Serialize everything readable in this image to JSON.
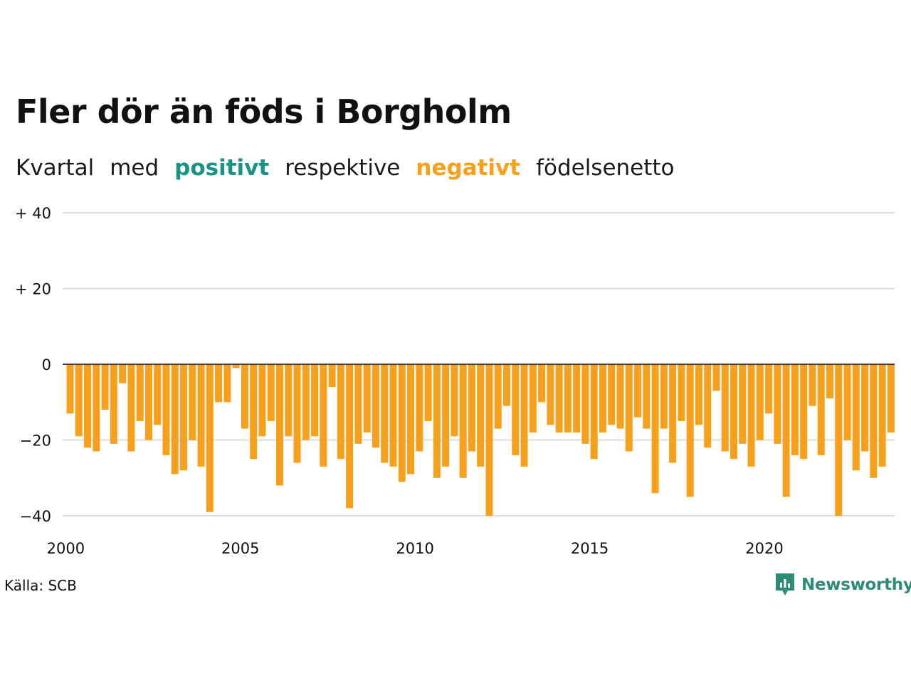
{
  "title": "Fler dör än föds i Borgholm",
  "subtitle": {
    "part1": "Kvartal",
    "part2": "med",
    "positive": "positivt",
    "part3": "respektive",
    "negative": "negativt",
    "part4": "födelsenetto"
  },
  "source": "Källa: SCB",
  "logo_text": "Newsworthy",
  "colors": {
    "positive": "#1a9384",
    "negative": "#f7a01c",
    "grid": "#dddddd",
    "logo": "#2e8b78"
  },
  "chart_data": {
    "type": "bar",
    "ylim": [
      -40,
      40
    ],
    "yticks": [
      {
        "value": 40,
        "label": "+ 40"
      },
      {
        "value": 20,
        "label": "+ 20"
      },
      {
        "value": 0,
        "label": "0"
      },
      {
        "value": -20,
        "label": "−20"
      },
      {
        "value": -40,
        "label": "−40"
      }
    ],
    "xticks": [
      "2000",
      "2005",
      "2010",
      "2015",
      "2020"
    ],
    "start": "2000 Q1",
    "values": [
      -13,
      -19,
      -22,
      -23,
      -12,
      -21,
      -5,
      -23,
      -15,
      -20,
      -16,
      -24,
      -29,
      -28,
      -20,
      -27,
      -39,
      -10,
      -10,
      -1,
      -17,
      -25,
      -19,
      -15,
      -32,
      -19,
      -26,
      -20,
      -19,
      -27,
      -6,
      -25,
      -38,
      -21,
      -18,
      -22,
      -26,
      -27,
      -31,
      -29,
      -23,
      -15,
      -30,
      -27,
      -19,
      -30,
      -23,
      -27,
      -40,
      -17,
      -11,
      -24,
      -27,
      -18,
      -10,
      -16,
      -18,
      -18,
      -18,
      -21,
      -25,
      -18,
      -16,
      -17,
      -23,
      -14,
      -17,
      -34,
      -17,
      -26,
      -15,
      -35,
      -16,
      -22,
      -7,
      -23,
      -25,
      -21,
      -27,
      -20,
      -13,
      -21,
      -35,
      -24,
      -25,
      -11,
      -24,
      -9,
      -40,
      -20,
      -28,
      -23,
      -30,
      -27,
      -18
    ]
  }
}
